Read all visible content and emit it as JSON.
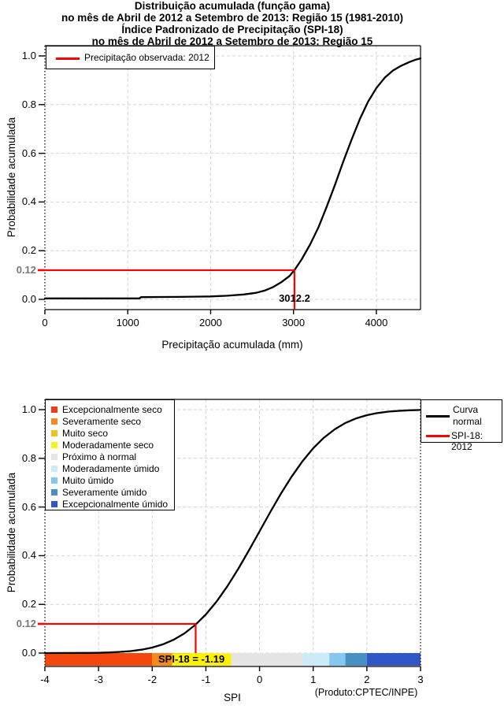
{
  "chart_data": [
    {
      "type": "line",
      "title": "Distribuição acumulada (função gama)",
      "subtitle": "no mês de Abril de 2012 a Setembro de 2013: Região 15 (1981-2010)",
      "xlabel": "Precipitação acumulada (mm)",
      "ylabel": "Probabilidade acumulada",
      "xlim": [
        0,
        4533
      ],
      "ylim": [
        0,
        1
      ],
      "grid": true,
      "legend": {
        "position": "top-left",
        "entries": [
          {
            "label": "Precipitação observada: 2012",
            "color": "#ff0000"
          }
        ]
      },
      "xticks": [
        {
          "v": 0,
          "t": "0"
        },
        {
          "v": 1000,
          "t": "1000"
        },
        {
          "v": 2000,
          "t": "2000"
        },
        {
          "v": 3000,
          "t": "3000"
        },
        {
          "v": 4000,
          "t": "4000"
        }
      ],
      "yticks": [
        {
          "v": 0,
          "t": "0.0"
        },
        {
          "v": 0.2,
          "t": "0.2"
        },
        {
          "v": 0.4,
          "t": "0.4"
        },
        {
          "v": 0.6,
          "t": "0.6"
        },
        {
          "v": 0.8,
          "t": "0.8"
        },
        {
          "v": 1,
          "t": "1.0"
        }
      ],
      "series": [
        {
          "name": "Distribuição gama acumulada",
          "color": "#000000",
          "points": [
            [
              0,
              0.004
            ],
            [
              1140,
              0.004
            ],
            [
              1160,
              0.009
            ],
            [
              1600,
              0.01
            ],
            [
              2000,
              0.012
            ],
            [
              2200,
              0.015
            ],
            [
              2400,
              0.02
            ],
            [
              2550,
              0.027
            ],
            [
              2650,
              0.036
            ],
            [
              2750,
              0.05
            ],
            [
              2850,
              0.07
            ],
            [
              2950,
              0.095
            ],
            [
              3012,
              0.12
            ],
            [
              3100,
              0.165
            ],
            [
              3200,
              0.225
            ],
            [
              3300,
              0.295
            ],
            [
              3400,
              0.38
            ],
            [
              3500,
              0.47
            ],
            [
              3600,
              0.565
            ],
            [
              3700,
              0.655
            ],
            [
              3800,
              0.74
            ],
            [
              3900,
              0.812
            ],
            [
              4000,
              0.868
            ],
            [
              4100,
              0.91
            ],
            [
              4200,
              0.94
            ],
            [
              4300,
              0.96
            ],
            [
              4400,
              0.975
            ],
            [
              4470,
              0.984
            ],
            [
              4533,
              0.99
            ]
          ]
        }
      ],
      "annotation": {
        "x": 3012.2,
        "y": 0.12,
        "x_text": "3012.2",
        "y_text": "0.12",
        "color": "#ff0000"
      }
    },
    {
      "type": "line",
      "title": "Índice Padronizado de Precipitação (SPI-18)",
      "subtitle": "no mês de Abril de 2012 a Setembro de 2013: Região 15",
      "xlabel": "SPI",
      "ylabel": "Probabilidade acumulada",
      "xlim": [
        -4,
        3
      ],
      "ylim": [
        0,
        1
      ],
      "grid": true,
      "xticks": [
        {
          "v": -4,
          "t": "-4"
        },
        {
          "v": -3,
          "t": "-3"
        },
        {
          "v": -2,
          "t": "-2"
        },
        {
          "v": -1,
          "t": "-1"
        },
        {
          "v": 0,
          "t": "0"
        },
        {
          "v": 1,
          "t": "1"
        },
        {
          "v": 2,
          "t": "2"
        },
        {
          "v": 3,
          "t": "3"
        }
      ],
      "yticks": [
        {
          "v": 0,
          "t": "0.0"
        },
        {
          "v": 0.2,
          "t": "0.2"
        },
        {
          "v": 0.4,
          "t": "0.4"
        },
        {
          "v": 0.6,
          "t": "0.6"
        },
        {
          "v": 0.8,
          "t": "0.8"
        },
        {
          "v": 1,
          "t": "1.0"
        }
      ],
      "categories_legend": [
        {
          "label": "Excepcionalmente seco",
          "color": "#ED3E16"
        },
        {
          "label": "Severamente seco",
          "color": "#F5891E"
        },
        {
          "label": "Muito seco",
          "color": "#F0C122"
        },
        {
          "label": "Moderadamente seco",
          "color": "#FAF214"
        },
        {
          "label": "Próximo à normal",
          "color": "#E5E5E5"
        },
        {
          "label": "Moderadamente úmido",
          "color": "#CCEAF8"
        },
        {
          "label": "Muito úmido",
          "color": "#86C7EF"
        },
        {
          "label": "Severamente úmido",
          "color": "#4690C4"
        },
        {
          "label": "Excepcionalmente úmido",
          "color": "#3156C8"
        }
      ],
      "line_legend": [
        {
          "label": "Curva normal",
          "color": "#000000"
        },
        {
          "label": "SPI-18: 2012",
          "color": "#ff0000"
        }
      ],
      "series": [
        {
          "name": "Curva normal",
          "color": "#000000",
          "points": [
            [
              -4,
              0.0001
            ],
            [
              -3.6,
              0.0002
            ],
            [
              -3.2,
              0.0007
            ],
            [
              -3,
              0.0013
            ],
            [
              -2.8,
              0.0026
            ],
            [
              -2.6,
              0.0047
            ],
            [
              -2.4,
              0.0082
            ],
            [
              -2.2,
              0.0139
            ],
            [
              -2,
              0.0228
            ],
            [
              -1.8,
              0.0359
            ],
            [
              -1.6,
              0.0548
            ],
            [
              -1.4,
              0.0808
            ],
            [
              -1.2,
              0.1151
            ],
            [
              -1,
              0.1587
            ],
            [
              -0.8,
              0.2119
            ],
            [
              -0.6,
              0.2743
            ],
            [
              -0.4,
              0.3446
            ],
            [
              -0.2,
              0.4207
            ],
            [
              0,
              0.5
            ],
            [
              0.2,
              0.5793
            ],
            [
              0.4,
              0.6554
            ],
            [
              0.6,
              0.7257
            ],
            [
              0.8,
              0.7881
            ],
            [
              1,
              0.8413
            ],
            [
              1.2,
              0.8849
            ],
            [
              1.4,
              0.9192
            ],
            [
              1.6,
              0.9452
            ],
            [
              1.8,
              0.9641
            ],
            [
              2,
              0.9772
            ],
            [
              2.2,
              0.9861
            ],
            [
              2.4,
              0.9918
            ],
            [
              2.6,
              0.9953
            ],
            [
              2.8,
              0.9974
            ],
            [
              3,
              0.9987
            ]
          ]
        }
      ],
      "annotation": {
        "x": -1.19,
        "y": 0.12,
        "y_text": "0.12",
        "bar_label": "SPI-18 = -1.19",
        "highlight_color": "#FFF200",
        "color": "#ff0000"
      },
      "spi_bar": {
        "segments": [
          {
            "from": -4,
            "to": -2,
            "color": "#F4470D"
          },
          {
            "from": -2,
            "to": -1.6,
            "color": "#F5891E"
          },
          {
            "from": -1.6,
            "to": -1.3,
            "color": "#F0C122"
          },
          {
            "from": -1.3,
            "to": -0.8,
            "color": "#FAF214"
          },
          {
            "from": -0.8,
            "to": 0.8,
            "color": "#E5E5E5"
          },
          {
            "from": 0.8,
            "to": 1.3,
            "color": "#CCEAF8"
          },
          {
            "from": 1.3,
            "to": 1.6,
            "color": "#86C7EF"
          },
          {
            "from": 1.6,
            "to": 2,
            "color": "#4690C4"
          },
          {
            "from": 2,
            "to": 3,
            "color": "#3156C8"
          }
        ],
        "highlight": {
          "from": -1.63,
          "to": -0.53
        }
      },
      "footer": "(Produto:CPTEC/INPE)"
    }
  ],
  "style": {
    "grid_color": "#d4d4d4",
    "axis_color": "#000000",
    "marker_label_color": "#777777",
    "red": "#ff0000"
  }
}
